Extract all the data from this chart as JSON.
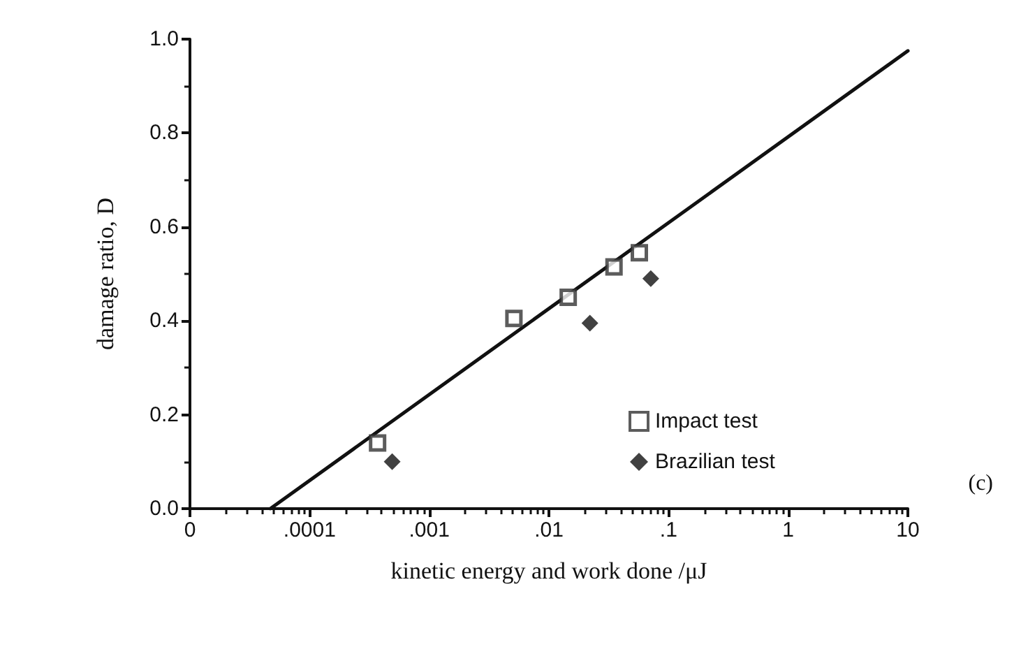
{
  "chart_data": {
    "type": "scatter",
    "xlabel": "kinetic energy and work done /μJ",
    "ylabel": "damage ratio, D",
    "log": "x",
    "grid": false,
    "legend": "bottom right",
    "annotations": [
      "(c)"
    ],
    "xlim": [
      1e-05,
      10
    ],
    "ylim": [
      0,
      1
    ],
    "xticks": [
      {
        "value": 1e-05,
        "label": "0"
      },
      {
        "value": 0.0001,
        "label": ".0001"
      },
      {
        "value": 0.001,
        "label": ".001"
      },
      {
        "value": 0.01,
        "label": ".01"
      },
      {
        "value": 0.1,
        "label": ".1"
      },
      1,
      10
    ],
    "yticks": [
      {
        "value": 0,
        "label": "0.0"
      },
      {
        "value": 0.2,
        "label": "0.2"
      },
      {
        "value": 0.4,
        "label": "0.4"
      },
      {
        "value": 0.6,
        "label": "0.6"
      },
      {
        "value": 0.8,
        "label": "0.8"
      },
      {
        "value": 1,
        "label": "1.0"
      }
    ],
    "series": [
      {
        "name": "Impact test",
        "marker": "square",
        "color": "#333333",
        "x": [
          0.00037,
          0.0051,
          0.0145,
          0.035,
          0.057
        ],
        "values": [
          0.14,
          0.405,
          0.45,
          0.515,
          0.545
        ]
      },
      {
        "name": "Brazilian test",
        "marker": "diamond",
        "color": "#111111",
        "x": [
          0.00049,
          0.022,
          0.071
        ],
        "values": [
          0.1,
          0.395,
          0.49
        ]
      },
      {
        "type": "line",
        "marker": "none",
        "line_style": "solid",
        "color": "#111111",
        "x": [
          4.7e-05,
          10
        ],
        "values": [
          0,
          0.975
        ]
      }
    ]
  }
}
